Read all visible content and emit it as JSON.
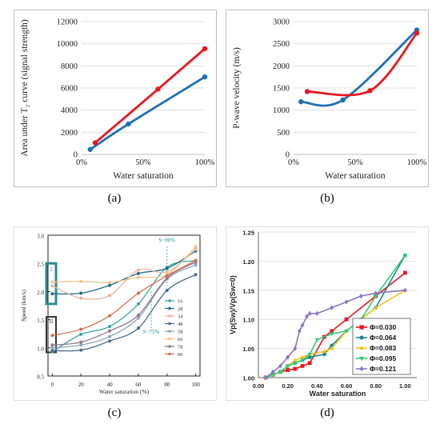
{
  "captions": [
    "(a)",
    "(b)",
    "(c)",
    "(d)"
  ],
  "chart_data": [
    {
      "id": "a",
      "type": "line",
      "xlabel": "Water saturation",
      "ylabel": "Area under T₂ curve (signal strength)",
      "x_ticks": [
        "0%",
        "50%",
        "100%"
      ],
      "x_tick_values": [
        0,
        50,
        100
      ],
      "y_ticks": [
        "0",
        "2000",
        "4000",
        "6000",
        "8000",
        "10000",
        "12000"
      ],
      "y_tick_values": [
        0,
        2000,
        4000,
        6000,
        8000,
        10000,
        12000
      ],
      "xlim": [
        0,
        100
      ],
      "ylim": [
        0,
        12000
      ],
      "grid": "horizontal",
      "series": [
        {
          "color": "#1f6fb5",
          "x": [
            7,
            38,
            100
          ],
          "y": [
            450,
            2750,
            7000
          ]
        },
        {
          "color": "#e8171f",
          "x": [
            11,
            62,
            100
          ],
          "y": [
            1050,
            5900,
            9550
          ]
        }
      ]
    },
    {
      "id": "b",
      "type": "line",
      "xlabel": "Water saturation",
      "ylabel": "P-wave velocity (m/s)",
      "x_ticks": [
        "0%",
        "50%",
        "100%"
      ],
      "x_tick_values": [
        0,
        50,
        100
      ],
      "y_ticks": [
        "0",
        "500",
        "1000",
        "1500",
        "2000",
        "2500",
        "3000"
      ],
      "y_tick_values": [
        0,
        500,
        1000,
        1500,
        2000,
        2500,
        3000
      ],
      "xlim": [
        0,
        100
      ],
      "ylim": [
        0,
        3000
      ],
      "grid": "horizontal",
      "series": [
        {
          "color": "#1f6fb5",
          "x": [
            6,
            40,
            100
          ],
          "y": [
            1190,
            1230,
            2810
          ]
        },
        {
          "color": "#e8171f",
          "x": [
            11,
            62,
            100
          ],
          "y": [
            1420,
            1440,
            2740
          ]
        }
      ]
    },
    {
      "id": "c",
      "type": "line",
      "xlabel": "Water saturation (%)",
      "ylabel": "Speed (km/s)",
      "x_ticks": [
        "0",
        "20",
        "40",
        "60",
        "80",
        "100"
      ],
      "x_tick_values": [
        0,
        20,
        40,
        60,
        80,
        100
      ],
      "y_ticks": [
        "0.5",
        "1.0",
        "1.5",
        "2.0",
        "2.5",
        "3.0"
      ],
      "y_tick_values": [
        0.5,
        1.0,
        1.5,
        2.0,
        2.5,
        3.0
      ],
      "xlim": [
        -3,
        103
      ],
      "ylim": [
        0.5,
        3.0
      ],
      "grid": "none",
      "legend": "right",
      "x": [
        0,
        20,
        40,
        60,
        80,
        100
      ],
      "annotations": [
        {
          "text": "S~80%",
          "x": 80,
          "y": 2.88,
          "color": "#2e8b8b"
        },
        {
          "text": "S~75%",
          "x": 69,
          "y": 1.25,
          "color": "#2e8b8b"
        },
        {
          "text": "I",
          "x": -1,
          "y": 2.4,
          "color": "#2e8b8b"
        },
        {
          "text": "II",
          "x": -1,
          "y": 1.48,
          "color": "#333333"
        }
      ],
      "series": [
        {
          "name": "16",
          "color": "#3aa4a4",
          "y": [
            0.93,
            1.24,
            1.38,
            1.78,
            2.43,
            2.55
          ]
        },
        {
          "name": "28",
          "color": "#1e6f86",
          "y": [
            1.96,
            1.97,
            2.11,
            2.32,
            2.41,
            2.72
          ]
        },
        {
          "name": "34",
          "color": "#e8b59f",
          "y": [
            2.1,
            1.88,
            1.93,
            2.38,
            2.35,
            2.75
          ]
        },
        {
          "name": "48",
          "color": "#4a6b8c",
          "y": [
            0.95,
            0.96,
            1.12,
            1.35,
            2.02,
            2.3
          ]
        },
        {
          "name": "58",
          "color": "#8aa6bd",
          "y": [
            1.0,
            1.05,
            1.2,
            1.53,
            2.22,
            2.47
          ]
        },
        {
          "name": "66",
          "color": "#f1c48b",
          "y": [
            2.17,
            2.18,
            2.16,
            2.25,
            2.3,
            2.8
          ]
        },
        {
          "name": "78",
          "color": "#8f7a8a",
          "y": [
            1.05,
            1.1,
            1.3,
            1.58,
            2.24,
            2.52
          ]
        },
        {
          "name": "86",
          "color": "#d56f5a",
          "y": [
            1.22,
            1.33,
            1.57,
            1.97,
            2.28,
            2.55
          ]
        }
      ]
    },
    {
      "id": "d",
      "type": "line",
      "xlabel": "Water saturation",
      "ylabel": "Vp(Sw)/Vp(Sw=0)",
      "x_ticks": [
        "0.00",
        "0.20",
        "0.40",
        "0.60",
        "0.80",
        "1.00"
      ],
      "x_tick_values": [
        0,
        0.2,
        0.4,
        0.6,
        0.8,
        1.0
      ],
      "y_ticks": [
        "1.00",
        "1.05",
        "1.10",
        "1.15",
        "1.20",
        "1.25"
      ],
      "y_tick_values": [
        1.0,
        1.05,
        1.1,
        1.15,
        1.2,
        1.25
      ],
      "xlim": [
        0,
        1.08
      ],
      "ylim": [
        1.0,
        1.25
      ],
      "grid": "horizontal",
      "legend": "bottom-right",
      "series": [
        {
          "name": "Φ=0.030",
          "color": "#e8171f",
          "marker": "square",
          "x": [
            0.05,
            0.1,
            0.15,
            0.2,
            0.25,
            0.3,
            0.35,
            0.45,
            0.5,
            0.6,
            0.8,
            1.0
          ],
          "y": [
            1.0,
            1.005,
            1.01,
            1.013,
            1.015,
            1.02,
            1.025,
            1.07,
            1.08,
            1.1,
            1.14,
            1.18
          ]
        },
        {
          "name": "Φ=0.064",
          "color": "#1f8a8a",
          "marker": "circle",
          "x": [
            0.05,
            0.1,
            0.15,
            0.2,
            0.25,
            0.3,
            0.35,
            0.45,
            0.5,
            0.6,
            0.8,
            1.0
          ],
          "y": [
            1.0,
            1.005,
            1.01,
            1.02,
            1.025,
            1.03,
            1.035,
            1.04,
            1.055,
            1.08,
            1.12,
            1.21
          ]
        },
        {
          "name": "Φ=0.083",
          "color": "#f2c21b",
          "marker": "triangle-up",
          "x": [
            0.05,
            0.1,
            0.15,
            0.2,
            0.25,
            0.3,
            0.35,
            0.45,
            0.5,
            0.6,
            0.7,
            0.8,
            1.0
          ],
          "y": [
            1.0,
            1.005,
            1.01,
            1.02,
            1.03,
            1.035,
            1.04,
            1.045,
            1.05,
            1.08,
            1.1,
            1.12,
            1.15
          ]
        },
        {
          "name": "Φ=0.095",
          "color": "#33cc7a",
          "marker": "triangle-down",
          "x": [
            0.05,
            0.1,
            0.15,
            0.2,
            0.25,
            0.3,
            0.35,
            0.4,
            0.5,
            0.6,
            0.7,
            0.8,
            1.0
          ],
          "y": [
            1.0,
            1.005,
            1.01,
            1.02,
            1.025,
            1.03,
            1.04,
            1.065,
            1.075,
            1.08,
            1.1,
            1.14,
            1.21
          ]
        },
        {
          "name": "Φ=0.121",
          "color": "#8b78c4",
          "marker": "diamond",
          "x": [
            0.05,
            0.1,
            0.15,
            0.2,
            0.25,
            0.28,
            0.3,
            0.33,
            0.35,
            0.4,
            0.5,
            0.6,
            0.7,
            0.8,
            1.0
          ],
          "y": [
            1.0,
            1.01,
            1.02,
            1.035,
            1.05,
            1.08,
            1.09,
            1.105,
            1.11,
            1.11,
            1.12,
            1.13,
            1.14,
            1.145,
            1.15
          ]
        }
      ]
    }
  ]
}
